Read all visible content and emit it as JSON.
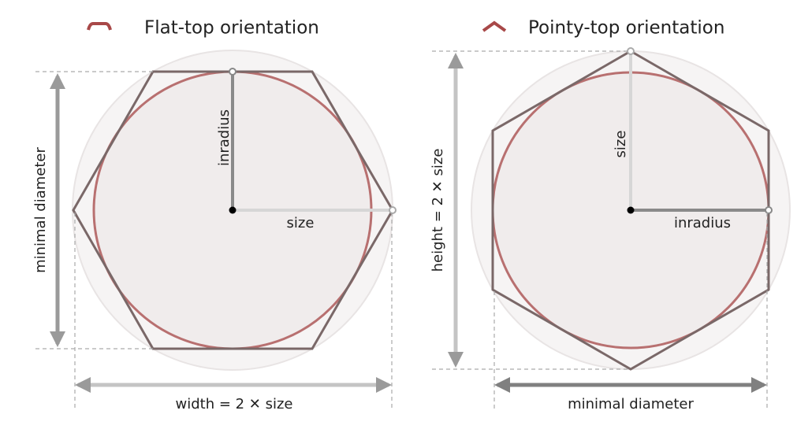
{
  "panels": [
    {
      "title": "Flat-top orientation",
      "center_label_vertical": "inradius",
      "center_label_horizontal": "size",
      "side_label": "minimal diameter",
      "bottom_label": "width = 2 ✕ size"
    },
    {
      "title": "Pointy-top orientation",
      "center_label_vertical": "size",
      "center_label_horizontal": "inradius",
      "side_label": "height = 2 ✕ size",
      "bottom_label": "minimal diameter"
    }
  ]
}
